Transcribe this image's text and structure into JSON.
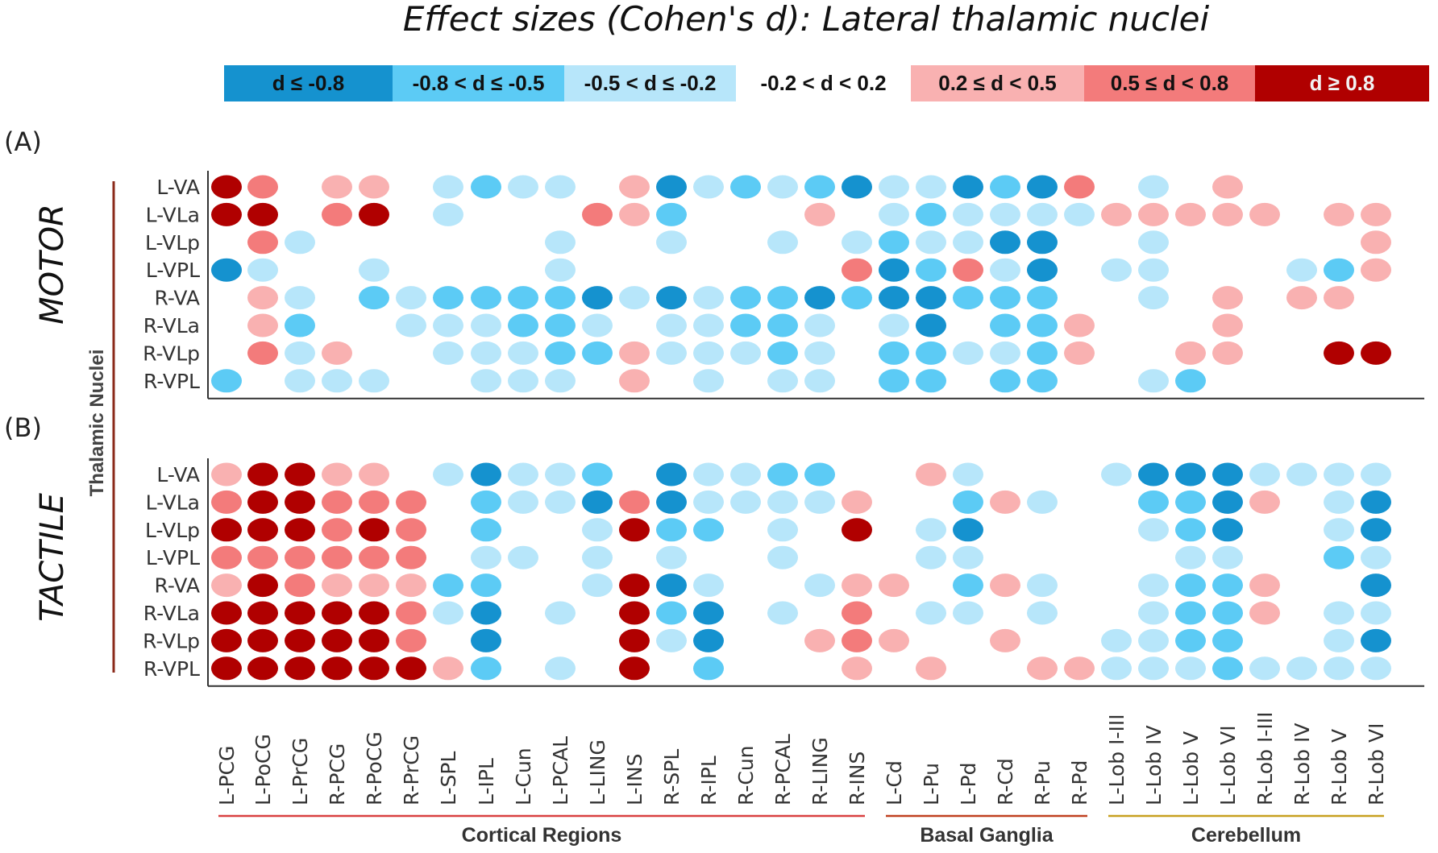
{
  "title": "Effect sizes (Cohen's d): Lateral thalamic nuclei",
  "legend": [
    {
      "label": "d ≤ -0.8",
      "color": "#1592cf",
      "level": -3
    },
    {
      "label": "-0.8 < d ≤ -0.5",
      "color": "#5ccbf5",
      "level": -2
    },
    {
      "label": "-0.5 < d ≤ -0.2",
      "color": "#b7e6fa",
      "level": -1
    },
    {
      "label": "-0.2 < d < 0.2",
      "color": "#ffffff",
      "level": 0
    },
    {
      "label": "0.2 ≤ d < 0.5",
      "color": "#f9b1b1",
      "level": 1
    },
    {
      "label": "0.5 ≤ d < 0.8",
      "color": "#f37b7b",
      "level": 2
    },
    {
      "label": "d ≥ 0.8",
      "color": "#b00000",
      "level": 3
    }
  ],
  "panel_labels": [
    "(A)",
    "(B)"
  ],
  "y_axis_label": "Thalamic Nuclei",
  "group_labels": [
    {
      "label": "Cortical Regions",
      "color": "#d94040"
    },
    {
      "label": "Basal Ganglia",
      "color": "#c04020"
    },
    {
      "label": "Cerebellum",
      "color": "#c8a020"
    }
  ],
  "chart_data": {
    "type": "heatmap",
    "title": "Effect sizes (Cohen's d): Lateral thalamic nuclei",
    "value_encoding": "ordinal effect-size bin: -3 (d ≤ -0.8) … 0 (-0.2 < d < 0.2) … 3 (d ≥ 0.8)",
    "columns": [
      "L-PCG",
      "L-PoCG",
      "L-PrCG",
      "R-PCG",
      "R-PoCG",
      "R-PrCG",
      "L-SPL",
      "L-IPL",
      "L-Cun",
      "L-PCAL",
      "L-LING",
      "L-INS",
      "R-SPL",
      "R-IPL",
      "R-Cun",
      "R-PCAL",
      "R-LING",
      "R-INS",
      "L-Cd",
      "L-Pu",
      "L-Pd",
      "R-Cd",
      "R-Pu",
      "R-Pd",
      "L-Lob I-III",
      "L-Lob IV",
      "L-Lob V",
      "L-Lob VI",
      "R-Lob I-III",
      "R-Lob IV",
      "R-Lob V",
      "R-Lob VI"
    ],
    "column_groups": [
      {
        "name": "Cortical Regions",
        "count": 18
      },
      {
        "name": "Basal Ganglia",
        "count": 6
      },
      {
        "name": "Cerebellum",
        "count": 8
      }
    ],
    "rows": [
      "L-VA",
      "L-VLa",
      "L-VLp",
      "L-VPL",
      "R-VA",
      "R-VLa",
      "R-VLp",
      "R-VPL"
    ],
    "panels": [
      {
        "name": "MOTOR",
        "label": "(A)",
        "values": [
          [
            3,
            2,
            0,
            1,
            1,
            0,
            -1,
            -2,
            -1,
            -1,
            0,
            1,
            -3,
            -1,
            -2,
            -1,
            -2,
            -3,
            -1,
            -1,
            -3,
            -2,
            -3,
            2,
            0,
            -1,
            0,
            1,
            0,
            0,
            0,
            0
          ],
          [
            3,
            3,
            0,
            2,
            3,
            0,
            -1,
            0,
            0,
            0,
            2,
            1,
            -2,
            0,
            0,
            0,
            1,
            0,
            -1,
            -2,
            -1,
            -1,
            -1,
            -1,
            1,
            1,
            1,
            1,
            1,
            0,
            1,
            1
          ],
          [
            0,
            2,
            -1,
            0,
            0,
            0,
            0,
            0,
            0,
            -1,
            0,
            0,
            -1,
            0,
            0,
            -1,
            0,
            -1,
            -2,
            -1,
            -1,
            -3,
            -3,
            0,
            0,
            -1,
            0,
            0,
            0,
            0,
            0,
            1
          ],
          [
            -3,
            -1,
            0,
            0,
            -1,
            0,
            0,
            0,
            0,
            -1,
            0,
            0,
            0,
            0,
            0,
            0,
            0,
            2,
            -3,
            -2,
            2,
            -1,
            -3,
            0,
            -1,
            -1,
            0,
            0,
            0,
            -1,
            -2,
            1
          ],
          [
            0,
            1,
            -1,
            0,
            -2,
            -1,
            -2,
            -2,
            -2,
            -2,
            -3,
            -1,
            -3,
            -1,
            -2,
            -2,
            -3,
            -2,
            -3,
            -3,
            -2,
            -2,
            -2,
            0,
            0,
            -1,
            0,
            1,
            0,
            1,
            1,
            0
          ],
          [
            0,
            1,
            -2,
            0,
            0,
            -1,
            -1,
            -1,
            -2,
            -2,
            -1,
            0,
            -1,
            -1,
            -2,
            -2,
            -1,
            0,
            -1,
            -3,
            0,
            -2,
            -2,
            1,
            0,
            0,
            0,
            1,
            0,
            0,
            0,
            0
          ],
          [
            0,
            2,
            -1,
            1,
            0,
            0,
            -1,
            -1,
            -1,
            -2,
            -2,
            1,
            -1,
            -1,
            -1,
            -2,
            -1,
            0,
            -2,
            -2,
            -1,
            -1,
            -2,
            1,
            0,
            0,
            1,
            1,
            0,
            0,
            3,
            3
          ],
          [
            -2,
            0,
            -1,
            -1,
            -1,
            0,
            0,
            -1,
            -1,
            -1,
            0,
            1,
            0,
            -1,
            0,
            -1,
            -1,
            0,
            -2,
            -2,
            0,
            -2,
            -2,
            0,
            0,
            -1,
            -2,
            0,
            0,
            0,
            0,
            0
          ]
        ]
      },
      {
        "name": "TACTILE",
        "label": "(B)",
        "values": [
          [
            1,
            3,
            3,
            1,
            1,
            0,
            -1,
            -3,
            -1,
            -1,
            -2,
            0,
            -3,
            -1,
            -1,
            -2,
            -2,
            0,
            0,
            1,
            -1,
            0,
            0,
            0,
            -1,
            -3,
            -3,
            -3,
            -1,
            -1,
            -1,
            -1
          ],
          [
            2,
            3,
            3,
            2,
            2,
            2,
            0,
            -2,
            -1,
            -1,
            -3,
            2,
            -3,
            -1,
            -1,
            -1,
            -1,
            1,
            0,
            0,
            -2,
            1,
            -1,
            0,
            0,
            -2,
            -2,
            -3,
            1,
            0,
            -1,
            -3
          ],
          [
            3,
            3,
            3,
            2,
            3,
            2,
            0,
            -2,
            0,
            0,
            -1,
            3,
            -2,
            -2,
            0,
            -1,
            0,
            3,
            0,
            -1,
            -3,
            0,
            0,
            0,
            0,
            -1,
            -2,
            -3,
            0,
            0,
            -1,
            -3
          ],
          [
            2,
            2,
            2,
            2,
            2,
            2,
            0,
            -1,
            -1,
            0,
            -1,
            0,
            -1,
            0,
            0,
            -1,
            0,
            0,
            0,
            -1,
            -1,
            0,
            0,
            0,
            0,
            0,
            -1,
            -1,
            0,
            0,
            -2,
            -1
          ],
          [
            1,
            3,
            2,
            1,
            1,
            1,
            -2,
            -2,
            0,
            0,
            -1,
            3,
            -3,
            -1,
            0,
            0,
            -1,
            1,
            1,
            0,
            -2,
            1,
            -1,
            0,
            0,
            -1,
            -2,
            -2,
            1,
            0,
            0,
            -3
          ],
          [
            3,
            3,
            3,
            3,
            3,
            2,
            -1,
            -3,
            0,
            -1,
            0,
            3,
            -2,
            -3,
            0,
            -1,
            0,
            2,
            0,
            -1,
            -1,
            0,
            -1,
            0,
            0,
            -1,
            -2,
            -2,
            1,
            0,
            -1,
            -1
          ],
          [
            3,
            3,
            3,
            3,
            3,
            2,
            0,
            -3,
            0,
            0,
            0,
            3,
            -1,
            -3,
            0,
            0,
            1,
            2,
            1,
            0,
            0,
            1,
            0,
            0,
            -1,
            -1,
            -2,
            -2,
            0,
            0,
            -1,
            -3
          ],
          [
            3,
            3,
            3,
            3,
            3,
            3,
            1,
            -2,
            0,
            -1,
            0,
            3,
            0,
            -2,
            0,
            0,
            0,
            1,
            0,
            1,
            0,
            0,
            1,
            1,
            -1,
            -1,
            -1,
            -2,
            -1,
            -1,
            -1,
            -1
          ]
        ]
      }
    ]
  }
}
